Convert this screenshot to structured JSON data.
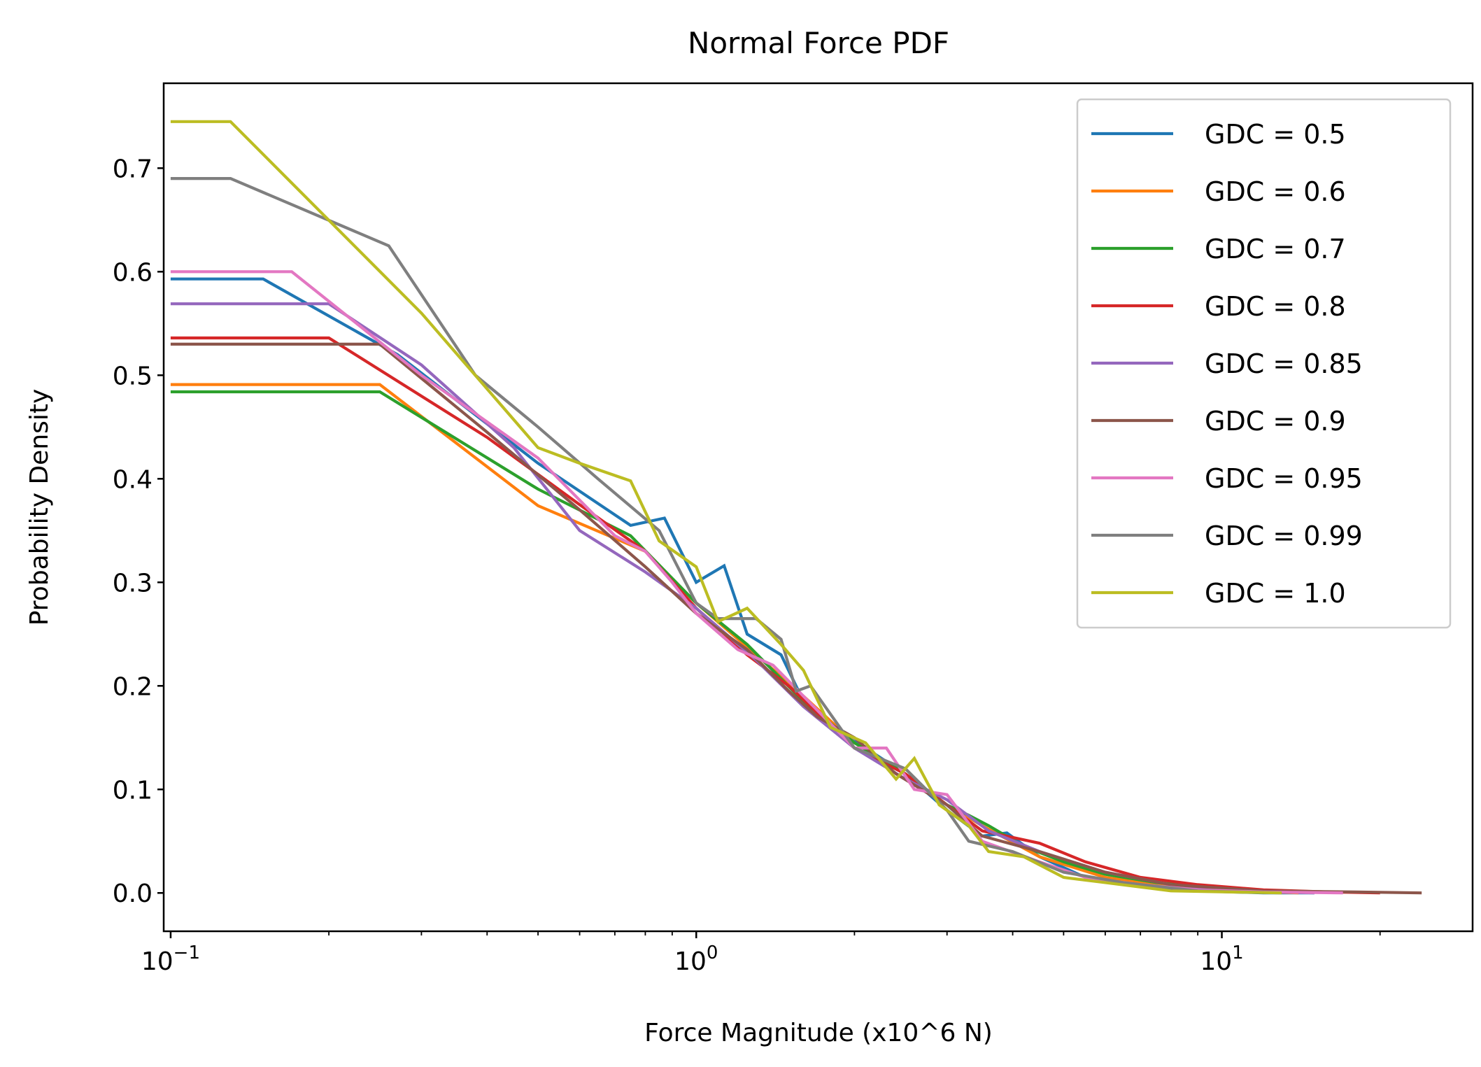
{
  "chart_data": {
    "type": "line",
    "title": "Normal Force PDF",
    "xlabel": "Force Magnitude (x10^6 N)",
    "ylabel": "Probability Density",
    "xscale": "log",
    "xlim": [
      0.097,
      30
    ],
    "ylim": [
      -0.037,
      0.782
    ],
    "grid": false,
    "legend_position": "top-right",
    "yticks": [
      {
        "value": 0.0,
        "label": "0.0"
      },
      {
        "value": 0.1,
        "label": "0.1"
      },
      {
        "value": 0.2,
        "label": "0.2"
      },
      {
        "value": 0.3,
        "label": "0.3"
      },
      {
        "value": 0.4,
        "label": "0.4"
      },
      {
        "value": 0.5,
        "label": "0.5"
      },
      {
        "value": 0.6,
        "label": "0.6"
      },
      {
        "value": 0.7,
        "label": "0.7"
      }
    ],
    "xticks_major": [
      {
        "value": 0.1,
        "base": "10",
        "exp": "−1"
      },
      {
        "value": 1,
        "base": "10",
        "exp": "0"
      },
      {
        "value": 10,
        "base": "10",
        "exp": "1"
      }
    ],
    "xticks_minor": [
      0.2,
      0.3,
      0.4,
      0.5,
      0.6,
      0.7,
      0.8,
      0.9,
      2,
      3,
      4,
      5,
      6,
      7,
      8,
      9,
      20
    ],
    "series": [
      {
        "name": "GDC = 0.5",
        "color": "#1f77b4",
        "x": [
          0.1,
          0.15,
          0.27,
          0.5,
          0.75,
          0.87,
          1.0,
          1.13,
          1.25,
          1.45,
          1.6,
          1.8,
          2.1,
          2.5,
          3.0,
          3.5,
          3.9,
          4.5,
          5.5,
          7,
          9,
          12,
          15
        ],
        "y": [
          0.593,
          0.593,
          0.52,
          0.415,
          0.355,
          0.362,
          0.3,
          0.316,
          0.25,
          0.23,
          0.185,
          0.16,
          0.14,
          0.115,
          0.08,
          0.055,
          0.058,
          0.035,
          0.015,
          0.006,
          0.002,
          0.0,
          0.0
        ]
      },
      {
        "name": "GDC = 0.6",
        "color": "#ff7f0e",
        "x": [
          0.1,
          0.25,
          0.5,
          0.8,
          1.0,
          1.3,
          1.6,
          2.0,
          2.5,
          3.0,
          3.5,
          4.5,
          6,
          8,
          11,
          14
        ],
        "y": [
          0.491,
          0.491,
          0.374,
          0.33,
          0.28,
          0.23,
          0.19,
          0.145,
          0.115,
          0.085,
          0.065,
          0.035,
          0.015,
          0.006,
          0.002,
          0.0
        ]
      },
      {
        "name": "GDC = 0.7",
        "color": "#2ca02c",
        "x": [
          0.1,
          0.25,
          0.5,
          0.75,
          1.0,
          1.25,
          1.6,
          2.0,
          2.5,
          3.0,
          3.3,
          3.6,
          4.2,
          5,
          6,
          7.5,
          10,
          14
        ],
        "y": [
          0.484,
          0.484,
          0.39,
          0.345,
          0.28,
          0.24,
          0.185,
          0.145,
          0.115,
          0.085,
          0.075,
          0.065,
          0.045,
          0.03,
          0.018,
          0.01,
          0.004,
          0.001
        ]
      },
      {
        "name": "GDC = 0.8",
        "color": "#d62728",
        "x": [
          0.1,
          0.2,
          0.4,
          0.6,
          0.8,
          1.0,
          1.25,
          1.5,
          2.0,
          2.5,
          3.0,
          3.5,
          4.5,
          5.5,
          7,
          9,
          12,
          16,
          20
        ],
        "y": [
          0.536,
          0.536,
          0.44,
          0.375,
          0.33,
          0.275,
          0.23,
          0.2,
          0.14,
          0.115,
          0.085,
          0.06,
          0.048,
          0.03,
          0.015,
          0.008,
          0.003,
          0.001,
          0.0
        ]
      },
      {
        "name": "GDC = 0.85",
        "color": "#9467bd",
        "x": [
          0.1,
          0.2,
          0.3,
          0.45,
          0.6,
          0.8,
          1.0,
          1.3,
          1.6,
          2.0,
          2.5,
          3.0,
          3.6,
          4.5,
          6,
          8,
          11,
          15
        ],
        "y": [
          0.569,
          0.569,
          0.51,
          0.43,
          0.35,
          0.31,
          0.275,
          0.225,
          0.18,
          0.14,
          0.11,
          0.09,
          0.06,
          0.04,
          0.02,
          0.008,
          0.002,
          0.0
        ]
      },
      {
        "name": "GDC = 0.9",
        "color": "#8c564b",
        "x": [
          0.1,
          0.25,
          0.4,
          0.6,
          0.8,
          1.0,
          1.25,
          1.5,
          1.7,
          2.0,
          2.4,
          3.0,
          3.5,
          4.5,
          6,
          8,
          12,
          18,
          24
        ],
        "y": [
          0.53,
          0.53,
          0.445,
          0.37,
          0.315,
          0.27,
          0.235,
          0.195,
          0.17,
          0.15,
          0.115,
          0.085,
          0.055,
          0.04,
          0.02,
          0.008,
          0.002,
          0.001,
          0.0
        ]
      },
      {
        "name": "GDC = 0.95",
        "color": "#e377c2",
        "x": [
          0.1,
          0.17,
          0.3,
          0.5,
          0.7,
          0.8,
          0.9,
          1.0,
          1.2,
          1.4,
          1.6,
          2.0,
          2.3,
          2.6,
          3.0,
          3.5,
          4.5,
          5.5,
          7,
          9,
          12,
          17
        ],
        "y": [
          0.6,
          0.6,
          0.5,
          0.42,
          0.345,
          0.33,
          0.3,
          0.27,
          0.235,
          0.22,
          0.19,
          0.14,
          0.14,
          0.1,
          0.095,
          0.05,
          0.03,
          0.015,
          0.008,
          0.003,
          0.001,
          0.0
        ]
      },
      {
        "name": "GDC = 0.99",
        "color": "#7f7f7f",
        "x": [
          0.1,
          0.13,
          0.26,
          0.38,
          0.5,
          0.65,
          0.85,
          1.0,
          1.1,
          1.3,
          1.45,
          1.55,
          1.65,
          2.0,
          2.5,
          3.0,
          3.3,
          4.0,
          5.0,
          6.5,
          9,
          13
        ],
        "y": [
          0.69,
          0.69,
          0.625,
          0.5,
          0.45,
          0.4,
          0.35,
          0.28,
          0.265,
          0.265,
          0.245,
          0.195,
          0.2,
          0.14,
          0.12,
          0.08,
          0.05,
          0.04,
          0.02,
          0.01,
          0.002,
          0.0
        ]
      },
      {
        "name": "GDC = 1.0",
        "color": "#bcbd22",
        "x": [
          0.1,
          0.13,
          0.3,
          0.5,
          0.6,
          0.75,
          0.85,
          1.0,
          1.1,
          1.25,
          1.45,
          1.6,
          1.8,
          2.1,
          2.4,
          2.6,
          2.9,
          3.3,
          3.6,
          4.2,
          5.0,
          6.0,
          8.0,
          13.0
        ],
        "y": [
          0.745,
          0.745,
          0.56,
          0.43,
          0.415,
          0.398,
          0.34,
          0.315,
          0.262,
          0.275,
          0.24,
          0.215,
          0.16,
          0.145,
          0.11,
          0.13,
          0.085,
          0.065,
          0.04,
          0.035,
          0.015,
          0.01,
          0.002,
          0.0
        ]
      }
    ]
  }
}
